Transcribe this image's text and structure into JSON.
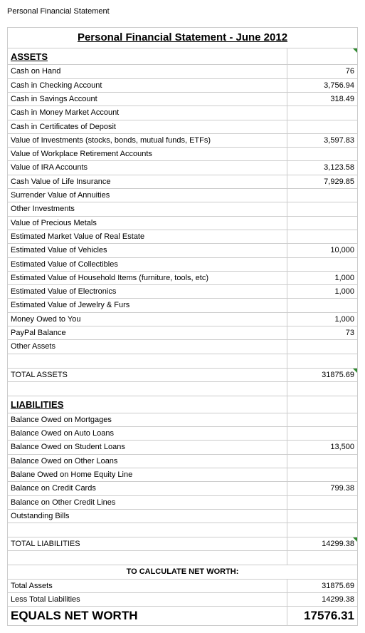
{
  "page_title": "Personal Financial Statement",
  "sheet_title": "Personal Financial Statement - June 2012",
  "assets": {
    "heading": "ASSETS",
    "rows": [
      {
        "label": "Cash on Hand",
        "value": "76"
      },
      {
        "label": "Cash in Checking Account",
        "value": "3,756.94"
      },
      {
        "label": "Cash in Savings Account",
        "value": "318.49"
      },
      {
        "label": "Cash in Money Market Account",
        "value": ""
      },
      {
        "label": "Cash in Certificates of Deposit",
        "value": ""
      },
      {
        "label": "Value of Investments (stocks, bonds, mutual funds, ETFs)",
        "value": "3,597.83"
      },
      {
        "label": "Value of Workplace Retirement Accounts",
        "value": ""
      },
      {
        "label": "Value of IRA Accounts",
        "value": "3,123.58"
      },
      {
        "label": "Cash Value of Life Insurance",
        "value": "7,929.85"
      },
      {
        "label": "Surrender Value of Annuities",
        "value": ""
      },
      {
        "label": "Other Investments",
        "value": ""
      },
      {
        "label": "Value of Precious Metals",
        "value": ""
      },
      {
        "label": "Estimated Market Value of Real Estate",
        "value": ""
      },
      {
        "label": "Estimated Value of Vehicles",
        "value": "10,000"
      },
      {
        "label": "Estimated Value of Collectibles",
        "value": ""
      },
      {
        "label": "Estimated Value of Household Items (furniture, tools, etc)",
        "value": "1,000"
      },
      {
        "label": "Estimated Value of Electronics",
        "value": "1,000"
      },
      {
        "label": "Estimated Value of Jewelry & Furs",
        "value": ""
      },
      {
        "label": "Money Owed to You",
        "value": "1,000"
      },
      {
        "label": "PayPal Balance",
        "value": "73"
      },
      {
        "label": "Other Assets",
        "value": ""
      }
    ],
    "total_label": "TOTAL ASSETS",
    "total_value": "31875.69"
  },
  "liabilities": {
    "heading": "LIABILITIES",
    "rows": [
      {
        "label": "Balance Owed on Mortgages",
        "value": ""
      },
      {
        "label": "Balance Owed on Auto Loans",
        "value": ""
      },
      {
        "label": "Balance Owed on Student Loans",
        "value": "13,500"
      },
      {
        "label": "Balance Owed on Other Loans",
        "value": ""
      },
      {
        "label": "Balane Owed on Home Equity Line",
        "value": ""
      },
      {
        "label": "Balance on Credit Cards",
        "value": "799.38"
      },
      {
        "label": "Balance on Other Credit Lines",
        "value": ""
      },
      {
        "label": "Outstanding Bills",
        "value": ""
      }
    ],
    "total_label": "TOTAL LIABILITIES",
    "total_value": "14299.38"
  },
  "calc": {
    "heading": "TO CALCULATE NET WORTH:",
    "assets_label": "Total Assets",
    "assets_value": "31875.69",
    "liab_label": "Less Total Liabilities",
    "liab_value": "14299.38",
    "networth_label": "EQUALS NET WORTH",
    "networth_value": "17576.31"
  },
  "style": {
    "border_color": "#cccccc",
    "marker_color": "#2e8b2e",
    "font_family": "Verdana, Geneva, sans-serif",
    "title_fontsize": 15,
    "section_fontsize": 13,
    "body_fontsize": 11,
    "networth_fontsize": 17,
    "background": "#ffffff",
    "text_color": "#000000"
  }
}
